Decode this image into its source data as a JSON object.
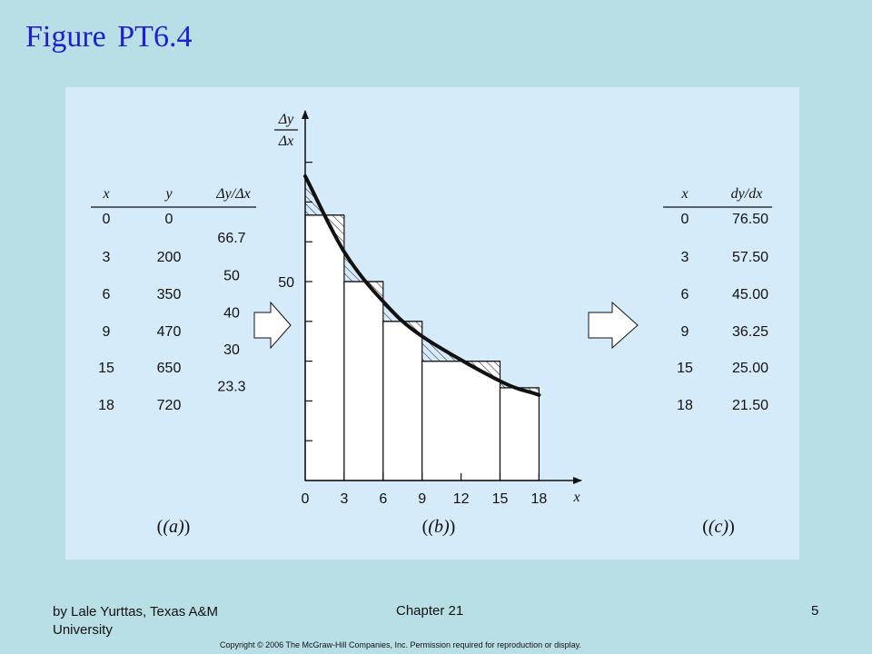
{
  "slide": {
    "title": "Figure PT6.4",
    "footer": {
      "author": "by Lale Yurttas, Texas A&M University",
      "chapter": "Chapter 21",
      "page_number": "5",
      "copyright": "Copyright © 2006 The McGraw-Hill Companies, Inc. Permission required for reproduction or display."
    }
  },
  "figure": {
    "table_a": {
      "headers": [
        "x",
        "y",
        "Δy/Δx"
      ],
      "rows": [
        {
          "x": "0",
          "y": "0"
        },
        {
          "x": "3",
          "y": "200"
        },
        {
          "x": "6",
          "y": "350"
        },
        {
          "x": "9",
          "y": "470"
        },
        {
          "x": "15",
          "y": "650"
        },
        {
          "x": "18",
          "y": "720"
        }
      ],
      "differences": [
        "66.7",
        "50",
        "40",
        "30",
        "23.3"
      ],
      "label": "(a)"
    },
    "table_c": {
      "headers": [
        "x",
        "dy/dx"
      ],
      "rows": [
        {
          "x": "0",
          "dydx": "76.50"
        },
        {
          "x": "3",
          "dydx": "57.50"
        },
        {
          "x": "6",
          "dydx": "45.00"
        },
        {
          "x": "9",
          "dydx": "36.25"
        },
        {
          "x": "15",
          "dydx": "25.00"
        },
        {
          "x": "18",
          "dydx": "21.50"
        }
      ],
      "label": "(c)"
    },
    "plot_b": {
      "label": "(b)",
      "y_axis_label": [
        "Δy",
        "Δx"
      ],
      "x_axis_label": "x",
      "x_tick_labels": [
        "0",
        "3",
        "6",
        "9",
        "12",
        "15",
        "18"
      ],
      "y_tick_label": "50"
    }
  },
  "chart_data": {
    "type": "bar",
    "title": "",
    "xlabel": "x",
    "ylabel": "Δy/Δx",
    "xlim": [
      0,
      18
    ],
    "ylim": [
      0,
      85
    ],
    "x_ticks": [
      0,
      3,
      6,
      9,
      12,
      15,
      18
    ],
    "y_ticks": [
      0,
      10,
      20,
      30,
      40,
      50,
      60,
      70,
      80
    ],
    "y_tick_labels_shown": {
      "50": "50"
    },
    "bars": [
      {
        "x0": 0,
        "x1": 3,
        "value": 66.7
      },
      {
        "x0": 3,
        "x1": 6,
        "value": 50
      },
      {
        "x0": 6,
        "x1": 9,
        "value": 40
      },
      {
        "x0": 9,
        "x1": 15,
        "value": 30
      },
      {
        "x0": 15,
        "x1": 18,
        "value": 23.3
      }
    ],
    "curve": {
      "x": [
        0,
        3,
        6,
        9,
        15,
        18
      ],
      "y": [
        76.5,
        57.5,
        45.0,
        36.25,
        25.0,
        21.5
      ]
    }
  }
}
